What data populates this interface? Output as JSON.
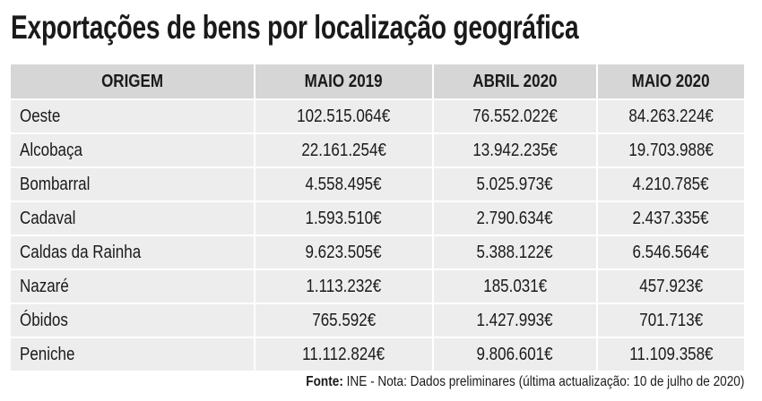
{
  "header": {
    "title": "Exportações de bens por localização geográfica"
  },
  "table": {
    "columns": [
      "ORIGEM",
      "MAIO 2019",
      "ABRIL 2020",
      "MAIO 2020"
    ],
    "rows": [
      [
        "Oeste",
        "102.515.064€",
        "76.552.022€",
        "84.263.224€"
      ],
      [
        "Alcobaça",
        "22.161.254€",
        "13.942.235€",
        "19.703.988€"
      ],
      [
        "Bombarral",
        "4.558.495€",
        "5.025.973€",
        "4.210.785€"
      ],
      [
        "Cadaval",
        "1.593.510€",
        "2.790.634€",
        "2.437.335€"
      ],
      [
        "Caldas da Rainha",
        "9.623.505€",
        "5.388.122€",
        "6.546.564€"
      ],
      [
        "Nazaré",
        "1.113.232€",
        "185.031€",
        "457.923€"
      ],
      [
        "Óbidos",
        "765.592€",
        "1.427.993€",
        "701.713€"
      ],
      [
        "Peniche",
        "11.112.824€",
        "9.806.601€",
        "11.109.358€"
      ]
    ]
  },
  "footer": {
    "source_label": "Fonte:",
    "source_text": "INE - Nota: Dados preliminares (última actualização: 10 de julho de 2020)"
  }
}
